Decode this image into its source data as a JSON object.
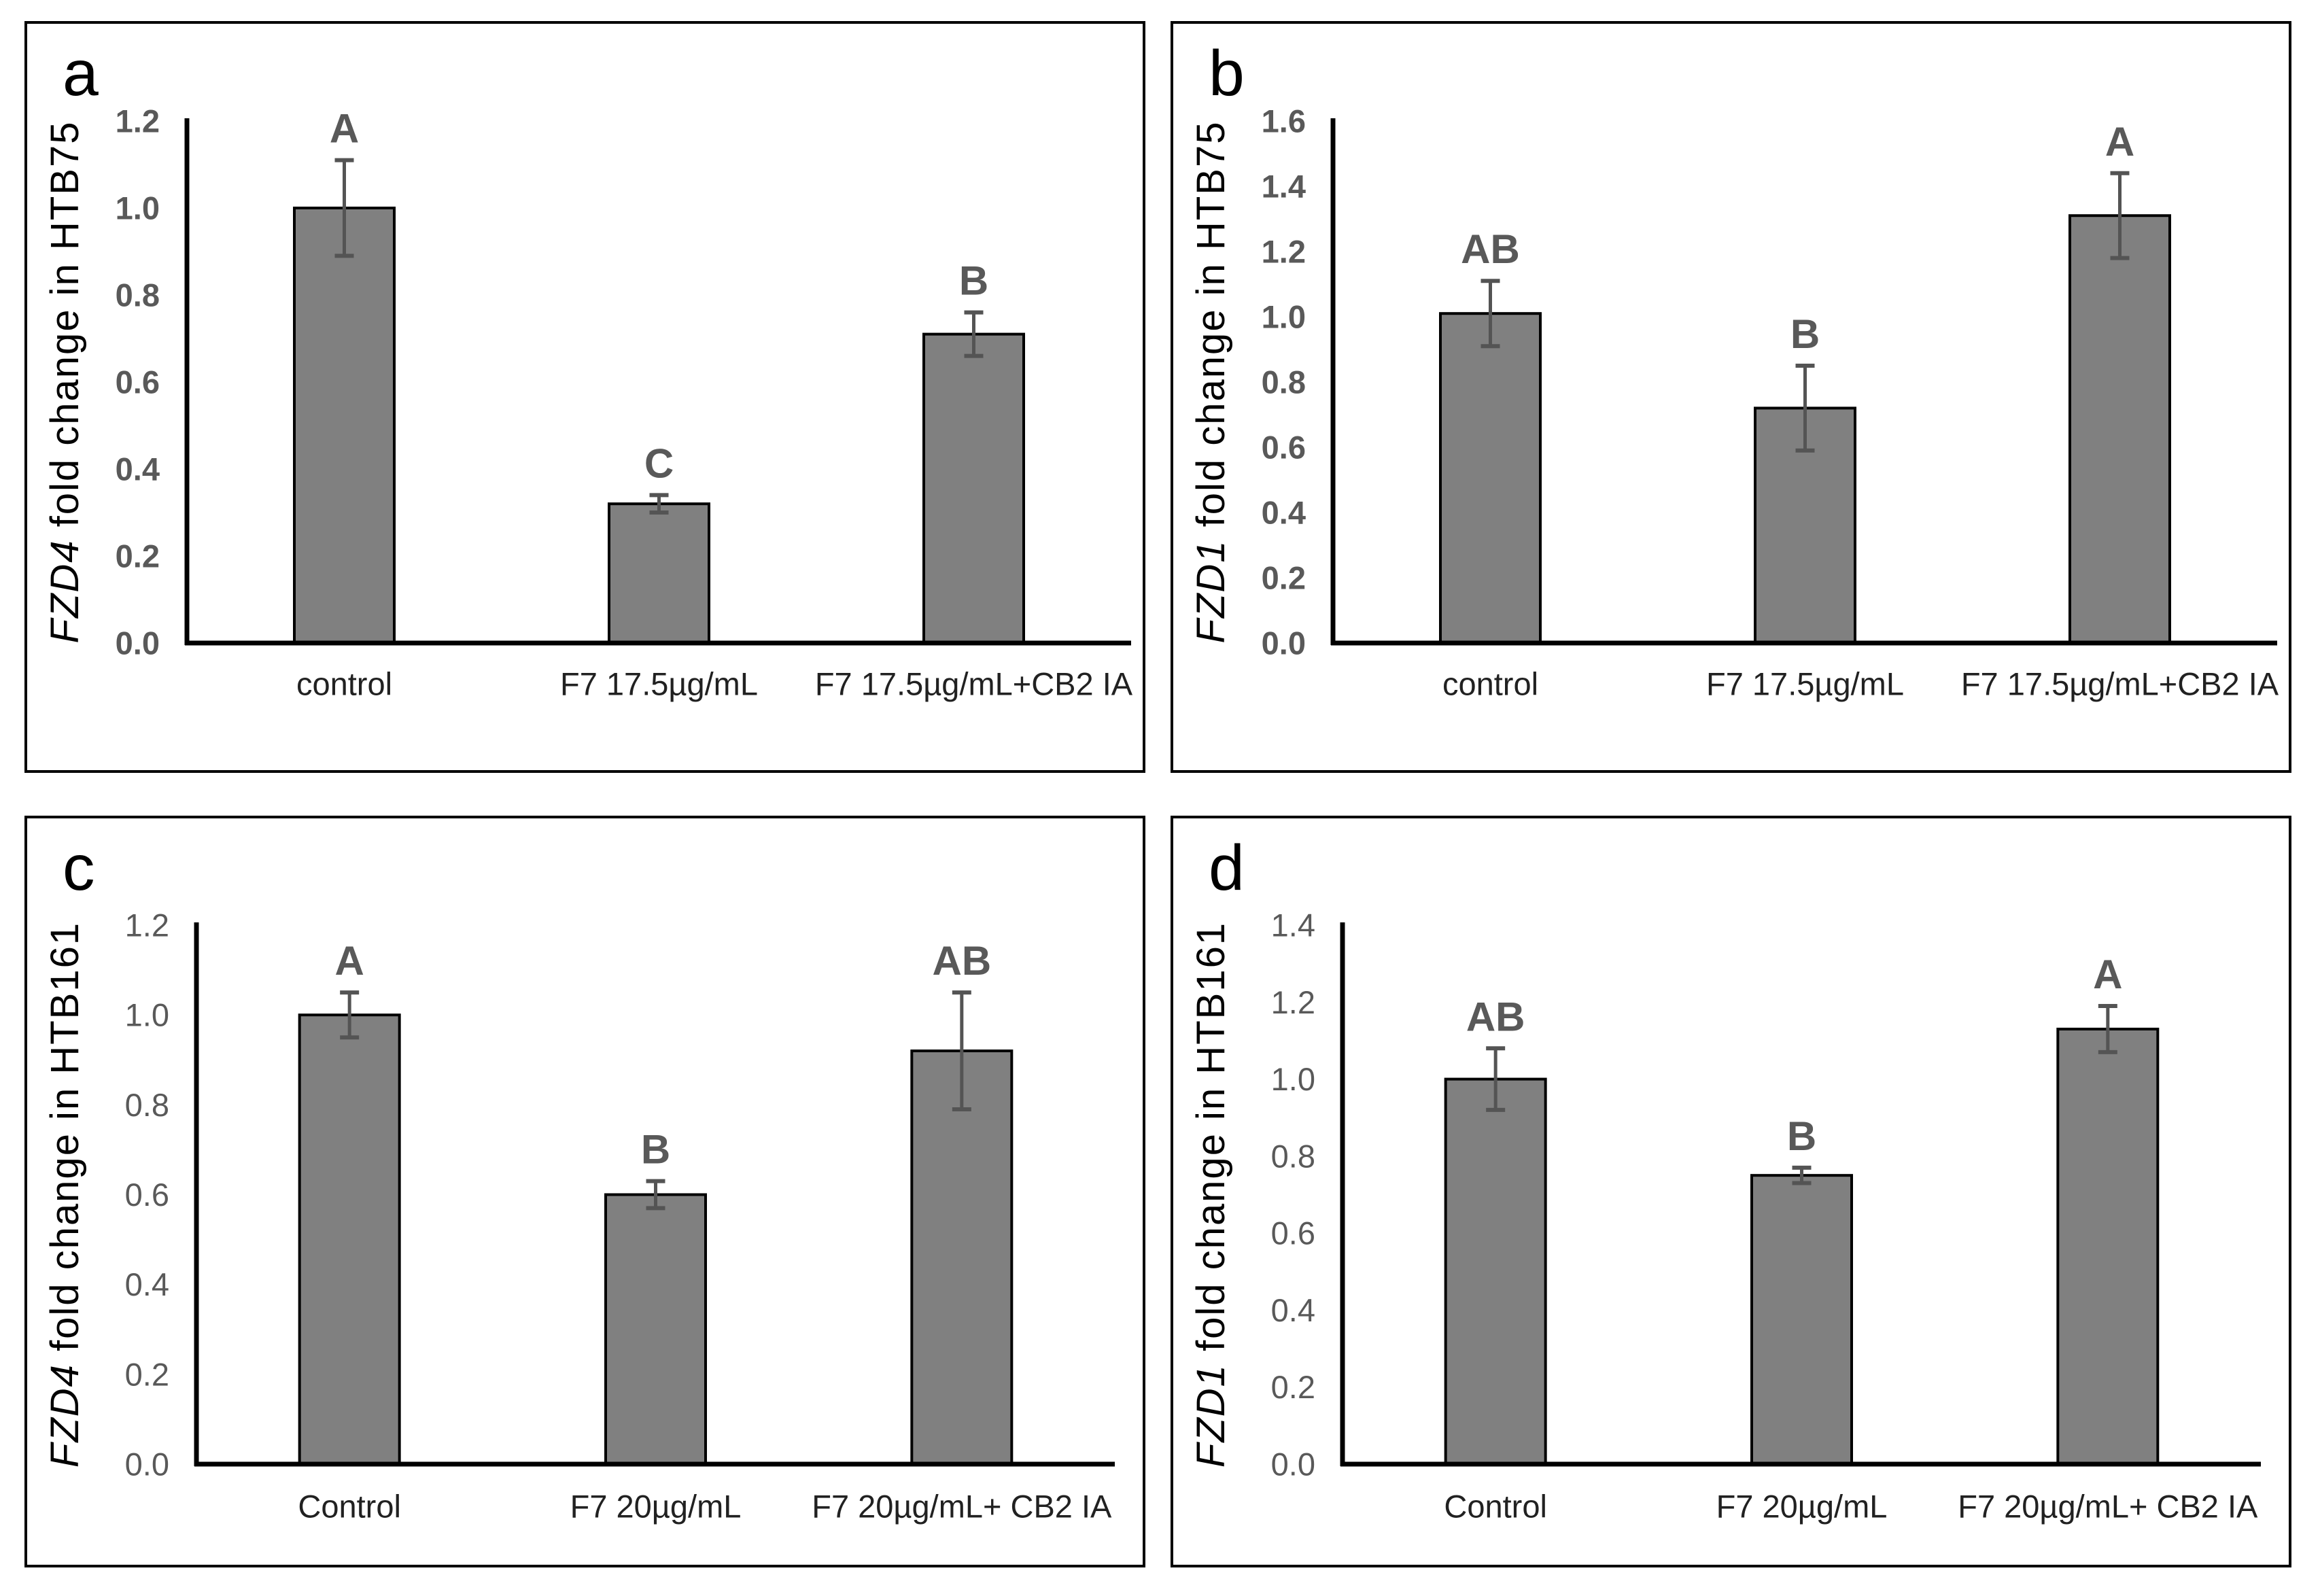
{
  "figure": {
    "description": "Four-panel bar figure of gene fold change with error bars and significance letters",
    "background": "#ffffff",
    "panel_border_color": "#000000"
  },
  "colors": {
    "bar_fill": "#808080",
    "bar_stroke": "#000000",
    "error_bar": "#545454",
    "axis_line": "#000000",
    "tick_label": "#595959",
    "sig_letter": "#595959",
    "category_label": "#212121",
    "panel_letter": "#000000"
  },
  "chart_data": [
    {
      "type": "bar",
      "panel_label": "a",
      "title": "",
      "xlabel": "",
      "ylabel": "FZD4 fold change in HTB75",
      "ylabel_gene": "FZD4",
      "ylabel_rest": " fold change in HTB75",
      "ylim": [
        0,
        1.2
      ],
      "ytick_labels": [
        "0.0",
        "0.2",
        "0.4",
        "0.6",
        "0.8",
        "1.0",
        "1.2"
      ],
      "tick_bold": true,
      "grid": false,
      "legend": false,
      "categories": [
        "control",
        "F7 17.5µg/mL",
        "F7 17.5µg/mL+CB2 IA"
      ],
      "values": [
        1.0,
        0.32,
        0.71
      ],
      "errors": [
        0.11,
        0.02,
        0.05
      ],
      "sig_letters": [
        "A",
        "C",
        "B"
      ]
    },
    {
      "type": "bar",
      "panel_label": "b",
      "title": "",
      "xlabel": "",
      "ylabel": "FZD1 fold change in HTB75",
      "ylabel_gene": "FZD1",
      "ylabel_rest": " fold change in HTB75",
      "ylim": [
        0,
        1.6
      ],
      "ytick_labels": [
        "0.0",
        "0.2",
        "0.4",
        "0.6",
        "0.8",
        "1.0",
        "1.2",
        "1.4",
        "1.6"
      ],
      "tick_bold": true,
      "grid": false,
      "legend": false,
      "categories": [
        "control",
        "F7 17.5µg/mL",
        "F7 17.5µg/mL+CB2 IA"
      ],
      "values": [
        1.01,
        0.72,
        1.31
      ],
      "errors": [
        0.1,
        0.13,
        0.13
      ],
      "sig_letters": [
        "AB",
        "B",
        "A"
      ]
    },
    {
      "type": "bar",
      "panel_label": "c",
      "title": "",
      "xlabel": "",
      "ylabel": "FZD4 fold change in HTB161",
      "ylabel_gene": "FZD4",
      "ylabel_rest": " fold change in HTB161",
      "ylim": [
        0,
        1.2
      ],
      "ytick_labels": [
        "0.0",
        "0.2",
        "0.4",
        "0.6",
        "0.8",
        "1.0",
        "1.2"
      ],
      "tick_bold": false,
      "grid": false,
      "legend": false,
      "categories": [
        "Control",
        "F7 20µg/mL",
        "F7 20µg/mL+ CB2 IA"
      ],
      "values": [
        1.0,
        0.6,
        0.92
      ],
      "errors": [
        0.05,
        0.03,
        0.13
      ],
      "sig_letters": [
        "A",
        "B",
        "AB"
      ]
    },
    {
      "type": "bar",
      "panel_label": "d",
      "title": "",
      "xlabel": "",
      "ylabel": "FZD1 fold change in HTB161",
      "ylabel_gene": "FZD1",
      "ylabel_rest": " fold change in HTB161",
      "ylim": [
        0,
        1.4
      ],
      "ytick_labels": [
        "0.0",
        "0.2",
        "0.4",
        "0.6",
        "0.8",
        "1.0",
        "1.2",
        "1.4"
      ],
      "tick_bold": false,
      "grid": false,
      "legend": false,
      "categories": [
        "Control",
        "F7 20µg/mL",
        "F7 20µg/mL+ CB2 IA"
      ],
      "values": [
        1.0,
        0.75,
        1.13
      ],
      "errors": [
        0.08,
        0.02,
        0.06
      ],
      "sig_letters": [
        "AB",
        "B",
        "A"
      ]
    }
  ]
}
